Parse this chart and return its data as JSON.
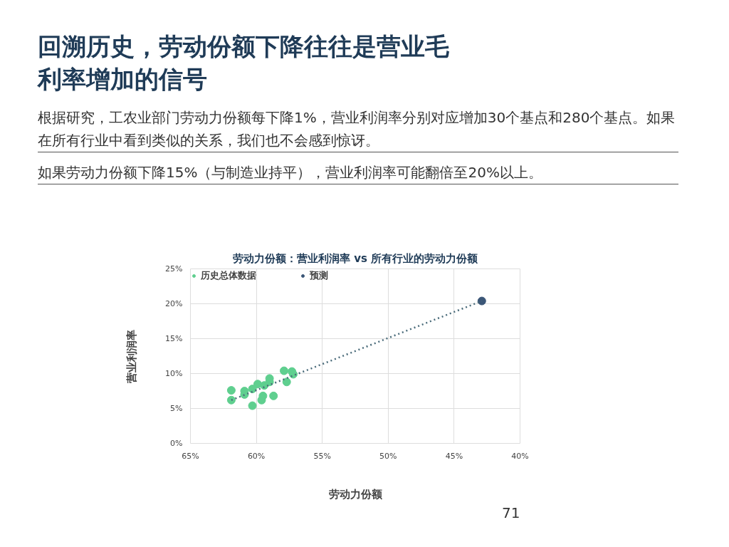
{
  "chart_data": {
    "type": "scatter",
    "title": "劳动力份额：营业利润率 vs 所有行业的劳动力份额",
    "subtitle": "回溯历史，劳动份额下降往往是营业毛利率增加的信号",
    "xlabel": "劳动力份额",
    "ylabel": "营业利润率",
    "annotations": [
      "根据研究，工农业部门劳动力份额每下降1%，营业利润率分别对应增加30个基点和280个基点。如果在所有行业中看到类似的关系，我们也不会感到惊讶。",
      "如果劳动力份额下降15%（与制造业持平），营业利润率可能翻倍至20%以上。",
      "71"
    ],
    "xlim": [
      65,
      40
    ],
    "ylim": [
      0,
      25
    ],
    "xticks": [
      {
        "value": 65,
        "label": "65%"
      },
      {
        "value": 60,
        "label": "60%"
      },
      {
        "value": 55,
        "label": "55%"
      },
      {
        "value": 50,
        "label": "50%"
      },
      {
        "value": 45,
        "label": "45%"
      },
      {
        "value": 40,
        "label": "40%"
      }
    ],
    "yticks": [
      {
        "value": 0,
        "label": "0%"
      },
      {
        "value": 5,
        "label": "5%"
      },
      {
        "value": 10,
        "label": "10%"
      },
      {
        "value": 15,
        "label": "15%"
      },
      {
        "value": 20,
        "label": "20%"
      },
      {
        "value": 25,
        "label": "25%"
      }
    ],
    "grid": true,
    "legend": "top left",
    "marker": "circle",
    "series": [
      {
        "name": "历史总体数据",
        "color": "#5fcf8f",
        "x": [
          61.9,
          61.9,
          60.9,
          60.9,
          60.3,
          60.3,
          59.9,
          59.6,
          59.5,
          59.4,
          59.0,
          59.0,
          58.7,
          57.9,
          57.7,
          57.3,
          57.2
        ],
        "values": [
          7.6,
          6.2,
          7.5,
          7.0,
          7.8,
          5.4,
          8.5,
          6.2,
          6.8,
          8.3,
          9.3,
          8.8,
          6.8,
          10.4,
          8.8,
          10.3,
          9.9
        ]
      },
      {
        "name": "预测",
        "color": "#3b5677",
        "x": [
          42.9
        ],
        "values": [
          20.4
        ]
      },
      {
        "color": "#4a6b7a",
        "type": "line",
        "marker": "none",
        "line_style": "dotted",
        "x": [
          61.9,
          42.9
        ],
        "values": [
          6.2,
          20.4
        ]
      }
    ]
  }
}
